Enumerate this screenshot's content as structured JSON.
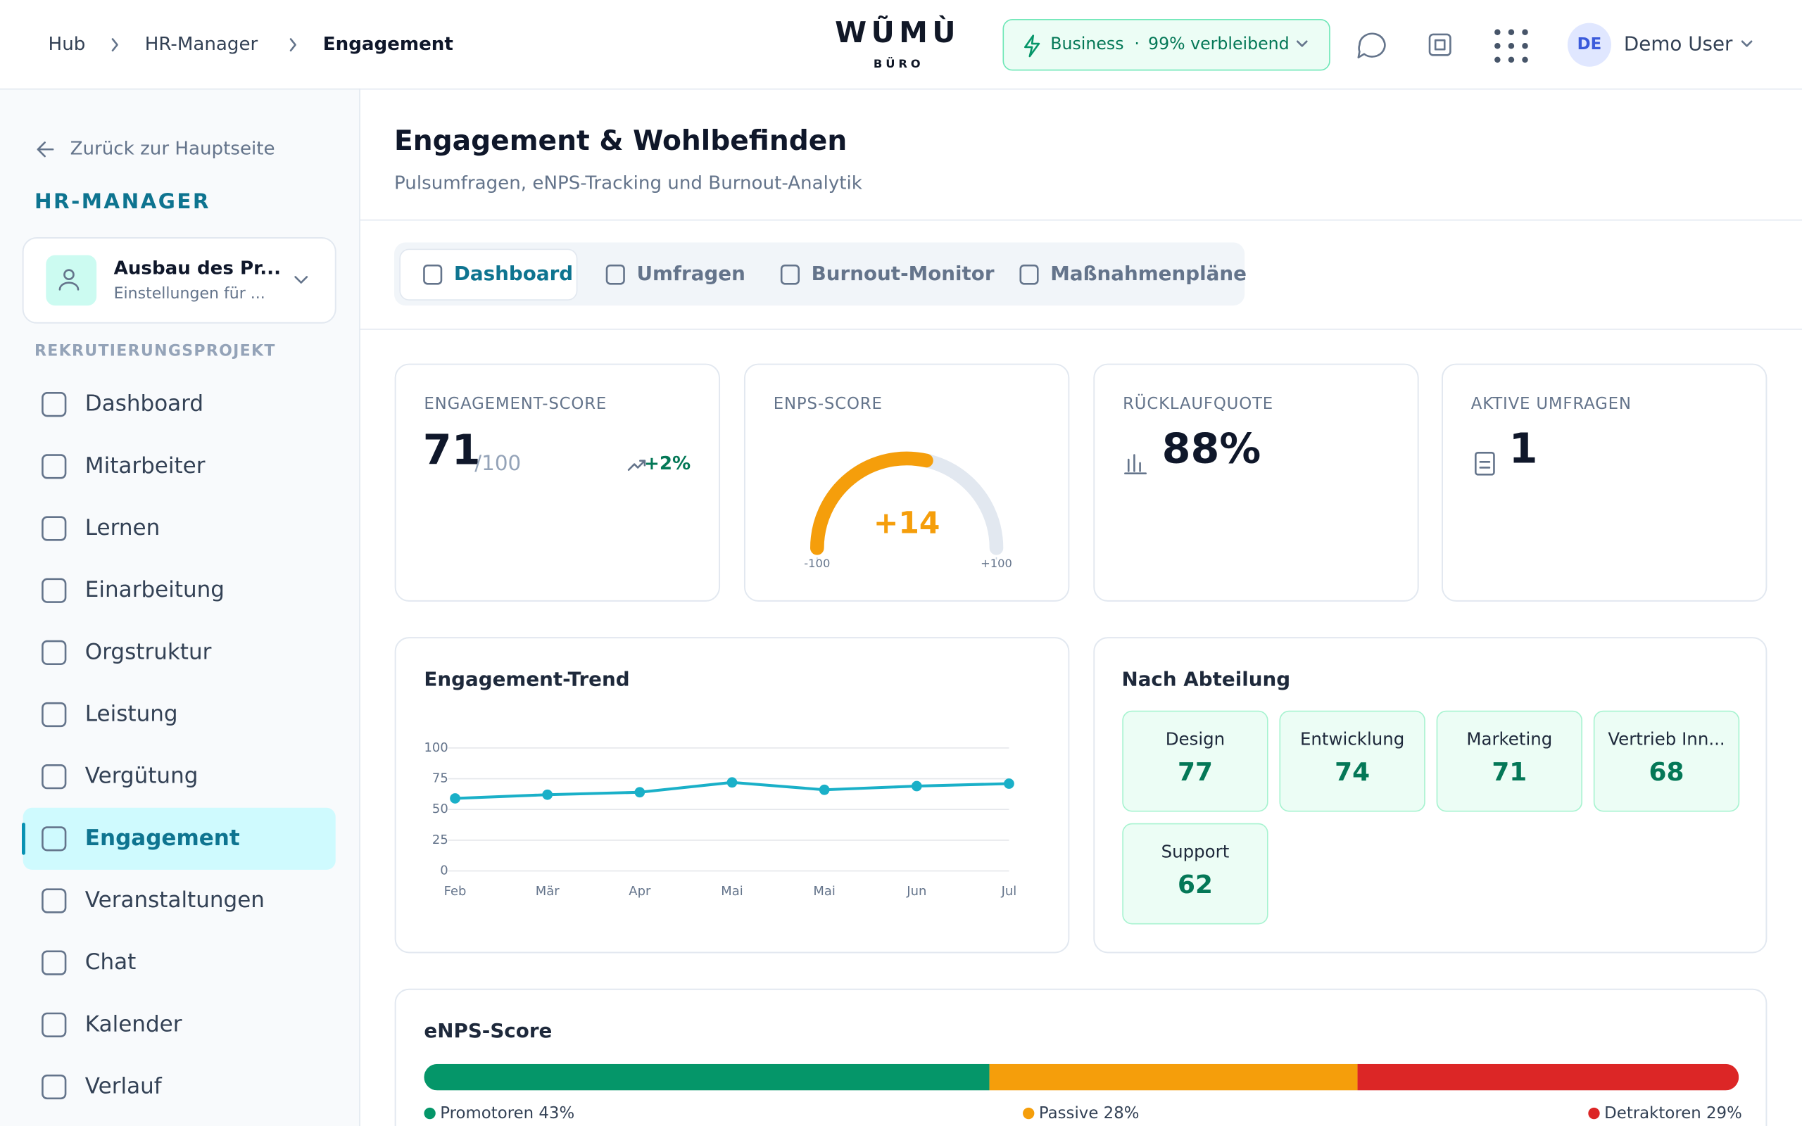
{
  "header": {
    "breadcrumbs": [
      "Hub",
      "HR-Manager",
      "Engagement"
    ],
    "logo": "WŨMÙ",
    "logo_sub": "BÜRO",
    "plan": "Business",
    "plan_separator": "·",
    "plan_status": "99% verbleibend",
    "avatar": "DE",
    "user": "Demo User"
  },
  "sidebar": {
    "back": "Zurück zur Hauptseite",
    "title": "HR-MANAGER",
    "project": {
      "name": "Ausbau des Pr...",
      "subtitle": "Einstellungen für ..."
    },
    "section": "REKRUTIERUNGSPROJEKT",
    "items": [
      "Dashboard",
      "Mitarbeiter",
      "Lernen",
      "Einarbeitung",
      "Orgstruktur",
      "Leistung",
      "Vergütung",
      "Engagement",
      "Veranstaltungen",
      "Chat",
      "Kalender",
      "Verlauf"
    ],
    "active": 7
  },
  "page": {
    "title": "Engagement & Wohlbefinden",
    "subtitle": "Pulsumfragen, eNPS-Tracking und Burnout-Analytik",
    "tabs": [
      "Dashboard",
      "Umfragen",
      "Burnout-Monitor",
      "Maßnahmenpläne"
    ],
    "active_tab": 0
  },
  "kpis": [
    {
      "label": "ENGAGEMENT-SCORE",
      "value": 71,
      "unit": "/100",
      "change": "+2%"
    },
    {
      "label": "ENPS-SCORE",
      "value": 14,
      "value_label": "+14",
      "range": [
        -100,
        {
          "value": 100,
          "label": "+100"
        }
      ],
      "color": "#f59e0b"
    },
    {
      "label": "RÜCKLAUFQUOTE",
      "value": 88,
      "value_label": "88%"
    },
    {
      "label": "AKTIVE UMFRAGEN",
      "value": 1
    }
  ],
  "trend": {
    "title": "Engagement-Trend",
    "categories": [
      "Feb",
      "Mär",
      "Apr",
      "Mai",
      "Mai",
      "Jun",
      "Jul"
    ],
    "values": [
      59,
      62,
      64,
      72,
      66,
      69,
      71
    ],
    "color": "#1ab0c8",
    "ylim": [
      0,
      100
    ],
    "yticks": [
      0,
      25,
      50,
      75,
      100
    ],
    "grid": true
  },
  "departments": {
    "title": "Nach Abteilung",
    "items": [
      {
        "name": "Design",
        "value": 77
      },
      {
        "name": "Entwicklung",
        "value": 74
      },
      {
        "name": "Marketing",
        "value": 71
      },
      {
        "name": "Vertrieb Inn...",
        "value": 68
      },
      {
        "name": "Support",
        "value": 62
      }
    ]
  },
  "enps": {
    "title": "eNPS-Score",
    "segments": [
      {
        "name": "Promotoren",
        "value": 43,
        "value_label": "43%",
        "color": "#059669"
      },
      {
        "name": "Passive",
        "value": 28,
        "value_label": "28%",
        "color": "#f59e0b"
      },
      {
        "name": "Detraktoren",
        "value": 29,
        "value_label": "29%",
        "color": "#dc2626"
      }
    ]
  }
}
